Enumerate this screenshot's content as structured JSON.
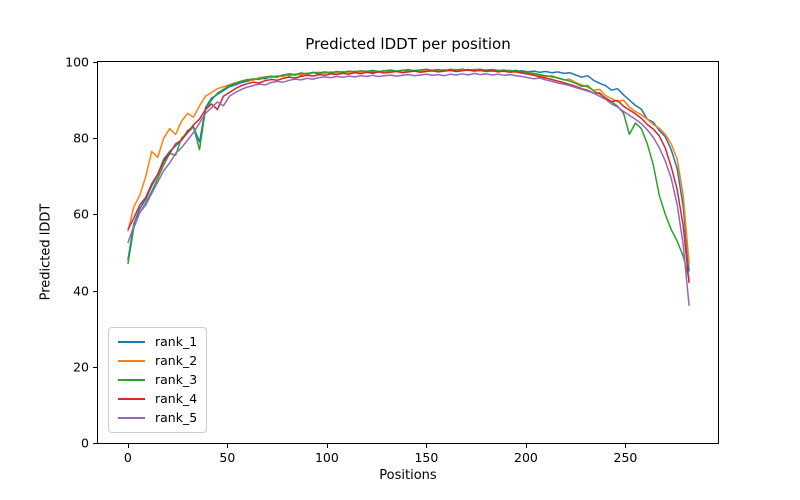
{
  "chart_data": {
    "type": "line",
    "title": "Predicted lDDT per position",
    "xlabel": "Positions",
    "ylabel": "Predicted lDDT",
    "xlim": [
      -15,
      296.5
    ],
    "ylim": [
      0,
      100
    ],
    "x_ticks": [
      0,
      50,
      100,
      150,
      200,
      250
    ],
    "y_ticks": [
      0,
      20,
      40,
      60,
      80,
      100
    ],
    "grid": false,
    "legend_position": "lower left",
    "x": [
      0,
      3,
      6,
      9,
      12,
      15,
      18,
      21,
      24,
      27,
      30,
      33,
      36,
      39,
      42,
      45,
      48,
      51,
      54,
      57,
      60,
      63,
      66,
      69,
      72,
      75,
      78,
      81,
      84,
      87,
      90,
      93,
      96,
      99,
      102,
      105,
      108,
      111,
      114,
      117,
      120,
      123,
      126,
      129,
      132,
      135,
      138,
      141,
      144,
      147,
      150,
      153,
      156,
      159,
      162,
      165,
      168,
      171,
      174,
      177,
      180,
      183,
      186,
      189,
      192,
      195,
      198,
      201,
      204,
      207,
      210,
      213,
      216,
      219,
      222,
      225,
      228,
      231,
      234,
      237,
      240,
      243,
      246,
      249,
      252,
      255,
      258,
      261,
      264,
      267,
      270,
      273,
      276,
      279,
      282
    ],
    "series": [
      {
        "name": "rank_1",
        "color": "#1f77b4",
        "values": [
          48.0,
          57.5,
          61.5,
          64.0,
          67.5,
          70.5,
          74.5,
          76.5,
          78.0,
          79.5,
          82.0,
          83.0,
          79.0,
          88.0,
          90.5,
          91.5,
          92.5,
          93.5,
          94.0,
          94.6,
          95.0,
          95.3,
          95.8,
          95.6,
          96.2,
          96.0,
          96.6,
          96.4,
          96.8,
          96.6,
          97.0,
          97.2,
          96.9,
          97.3,
          97.0,
          97.4,
          97.1,
          97.5,
          97.2,
          97.4,
          97.6,
          97.3,
          97.5,
          97.7,
          97.4,
          97.6,
          97.8,
          97.5,
          97.7,
          97.9,
          97.6,
          97.8,
          98.0,
          97.7,
          97.9,
          98.0,
          97.8,
          98.0,
          97.9,
          97.7,
          97.9,
          98.0,
          97.8,
          97.6,
          97.8,
          97.5,
          97.7,
          97.4,
          97.6,
          97.3,
          97.5,
          97.2,
          97.4,
          97.0,
          97.2,
          96.6,
          96.0,
          96.4,
          95.2,
          94.4,
          93.8,
          92.6,
          93.0,
          91.4,
          90.0,
          88.6,
          87.6,
          85.0,
          84.2,
          82.0,
          80.4,
          77.0,
          72.0,
          62.0,
          45.0
        ]
      },
      {
        "name": "rank_2",
        "color": "#ff7f0e",
        "values": [
          55.5,
          62.0,
          65.0,
          70.0,
          76.5,
          75.0,
          80.0,
          82.5,
          81.0,
          84.5,
          86.5,
          85.5,
          88.5,
          91.0,
          92.0,
          93.0,
          93.5,
          94.0,
          94.6,
          95.0,
          95.4,
          95.2,
          95.9,
          96.1,
          95.9,
          96.4,
          96.2,
          96.7,
          96.5,
          96.9,
          96.7,
          97.1,
          97.3,
          97.0,
          97.4,
          97.1,
          97.5,
          97.2,
          97.6,
          97.3,
          97.5,
          97.7,
          97.4,
          97.6,
          97.8,
          97.5,
          97.7,
          97.4,
          97.8,
          97.6,
          97.9,
          97.6,
          97.8,
          98.0,
          97.7,
          97.9,
          98.1,
          97.8,
          98.0,
          97.7,
          97.9,
          97.6,
          97.8,
          97.5,
          97.7,
          97.3,
          97.1,
          96.8,
          96.9,
          96.4,
          96.2,
          96.4,
          95.8,
          95.3,
          95.5,
          94.6,
          94.0,
          93.4,
          92.6,
          92.8,
          91.2,
          90.4,
          89.6,
          90.0,
          88.2,
          87.0,
          86.2,
          85.0,
          83.6,
          82.6,
          81.0,
          78.5,
          74.5,
          65.0,
          47.0
        ]
      },
      {
        "name": "rank_3",
        "color": "#2ca02c",
        "values": [
          47.0,
          56.5,
          60.5,
          63.0,
          66.0,
          69.5,
          73.0,
          76.0,
          75.5,
          80.0,
          81.5,
          83.0,
          77.0,
          87.5,
          90.0,
          91.8,
          92.8,
          93.8,
          94.4,
          94.9,
          95.3,
          95.6,
          95.4,
          96.0,
          96.3,
          96.1,
          96.6,
          96.9,
          96.7,
          97.1,
          96.9,
          97.3,
          97.1,
          97.4,
          97.2,
          97.5,
          97.3,
          97.6,
          97.4,
          97.7,
          97.5,
          97.8,
          97.5,
          97.7,
          97.9,
          97.6,
          97.8,
          98.0,
          97.7,
          97.9,
          98.1,
          97.8,
          98.0,
          97.7,
          98.1,
          97.9,
          98.1,
          97.8,
          98.0,
          98.1,
          97.8,
          98.0,
          97.7,
          97.9,
          97.6,
          97.8,
          97.4,
          97.2,
          97.0,
          96.7,
          96.4,
          96.1,
          95.8,
          95.4,
          95.0,
          94.4,
          93.6,
          93.8,
          92.4,
          91.6,
          90.6,
          89.6,
          88.4,
          86.6,
          81.0,
          84.0,
          82.5,
          78.5,
          73.0,
          65.0,
          60.0,
          56.0,
          53.0,
          49.0,
          43.0
        ]
      },
      {
        "name": "rank_4",
        "color": "#d62728",
        "values": [
          56.0,
          59.0,
          62.5,
          64.5,
          68.0,
          70.5,
          74.0,
          76.0,
          78.5,
          79.5,
          81.5,
          83.5,
          85.0,
          87.5,
          89.0,
          87.5,
          91.0,
          92.0,
          93.0,
          93.8,
          94.3,
          94.7,
          94.5,
          95.1,
          95.4,
          95.2,
          95.7,
          96.0,
          95.8,
          96.2,
          96.5,
          96.3,
          96.7,
          96.5,
          96.9,
          96.7,
          97.0,
          96.8,
          97.2,
          96.9,
          97.3,
          97.0,
          97.4,
          97.1,
          97.3,
          97.5,
          97.2,
          97.4,
          97.6,
          97.3,
          97.5,
          97.7,
          97.4,
          97.6,
          97.8,
          97.5,
          97.7,
          97.9,
          97.6,
          97.8,
          97.5,
          97.7,
          97.4,
          97.6,
          97.3,
          97.5,
          97.1,
          96.8,
          96.5,
          96.1,
          95.8,
          95.4,
          95.0,
          94.6,
          94.1,
          93.6,
          93.0,
          92.6,
          91.8,
          91.9,
          90.4,
          89.6,
          89.9,
          88.4,
          87.4,
          86.4,
          85.2,
          83.6,
          82.4,
          80.6,
          77.4,
          72.5,
          66.5,
          57.0,
          42.0
        ]
      },
      {
        "name": "rank_5",
        "color": "#9467bd",
        "values": [
          52.5,
          57.0,
          60.5,
          62.5,
          65.5,
          68.5,
          71.5,
          73.5,
          76.0,
          77.5,
          79.5,
          81.5,
          84.0,
          86.5,
          88.0,
          89.5,
          88.5,
          91.0,
          92.0,
          92.8,
          93.4,
          93.8,
          94.2,
          94.0,
          94.6,
          94.9,
          94.7,
          95.2,
          95.5,
          95.3,
          95.7,
          95.5,
          95.9,
          96.1,
          95.9,
          96.2,
          96.0,
          96.3,
          96.1,
          96.4,
          96.2,
          96.5,
          96.2,
          96.4,
          96.6,
          96.3,
          96.5,
          96.7,
          96.4,
          96.6,
          96.8,
          96.5,
          96.7,
          96.4,
          96.8,
          96.6,
          96.9,
          96.6,
          97.0,
          96.7,
          96.9,
          96.6,
          96.8,
          96.5,
          96.7,
          96.4,
          96.2,
          95.9,
          95.6,
          95.8,
          95.3,
          94.9,
          94.5,
          94.2,
          93.8,
          93.3,
          92.8,
          92.4,
          91.8,
          91.0,
          90.2,
          89.0,
          88.2,
          87.0,
          86.0,
          85.0,
          83.8,
          82.2,
          80.2,
          77.5,
          74.0,
          69.5,
          62.5,
          52.0,
          36.0
        ]
      }
    ]
  }
}
